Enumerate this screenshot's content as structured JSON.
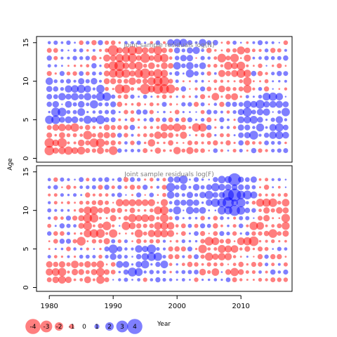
{
  "chart_data": [
    {
      "type": "scatter",
      "title": "Joint sample residuals log(N)",
      "xlabel": "Year",
      "ylabel": "Age",
      "xlim": [
        1978,
        2018
      ],
      "ylim": [
        -0.5,
        15.8
      ],
      "xticks": [
        1980,
        1990,
        2000,
        2010
      ],
      "yticks": [
        0,
        5,
        10,
        15
      ],
      "years": [
        1980,
        2017
      ],
      "ages": [
        1,
        15
      ],
      "encoding": "bubble area proportional to |residual|; red = negative, blue = positive",
      "region_pattern": [
        {
          "years": [
            1989,
            1999
          ],
          "ages": [
            9,
            14
          ],
          "sign": "negative",
          "strength": 0.85
        },
        {
          "years": [
            1980,
            1990
          ],
          "ages": [
            1,
            4
          ],
          "sign": "negative",
          "strength": 0.7
        },
        {
          "years": [
            1995,
            2004
          ],
          "ages": [
            1,
            4
          ],
          "sign": "negative",
          "strength": 0.55
        },
        {
          "years": [
            2005,
            2011
          ],
          "ages": [
            8,
            14
          ],
          "sign": "negative",
          "strength": 0.6
        },
        {
          "years": [
            1980,
            1990
          ],
          "ages": [
            5,
            10
          ],
          "sign": "positive",
          "strength": 0.6
        },
        {
          "years": [
            1999,
            2006
          ],
          "ages": [
            11,
            15
          ],
          "sign": "positive",
          "strength": 0.6
        },
        {
          "years": [
            2010,
            2017
          ],
          "ages": [
            3,
            8
          ],
          "sign": "positive",
          "strength": 0.6
        }
      ]
    },
    {
      "type": "scatter",
      "title": "Joint sample residuals log(F)",
      "xlabel": "Year",
      "ylabel": "Age",
      "xlim": [
        1978,
        2018
      ],
      "ylim": [
        -0.5,
        15.8
      ],
      "xticks": [
        1980,
        1990,
        2000,
        2010
      ],
      "yticks": [
        0,
        5,
        10,
        15
      ],
      "years": [
        1980,
        2017
      ],
      "ages": [
        1,
        14
      ],
      "encoding": "bubble area proportional to |residual|; red = negative, blue = positive",
      "region_pattern": [
        {
          "years": [
            1985,
            1999
          ],
          "ages": [
            6,
            11
          ],
          "sign": "negative",
          "strength": 0.6
        },
        {
          "years": [
            1980,
            1990
          ],
          "ages": [
            1,
            3
          ],
          "sign": "negative",
          "strength": 0.6
        },
        {
          "years": [
            2004,
            2012
          ],
          "ages": [
            2,
            6
          ],
          "sign": "negative",
          "strength": 0.55
        },
        {
          "years": [
            2012,
            2017
          ],
          "ages": [
            6,
            11
          ],
          "sign": "negative",
          "strength": 0.55
        },
        {
          "years": [
            1990,
            1998
          ],
          "ages": [
            2,
            6
          ],
          "sign": "positive",
          "strength": 0.6
        },
        {
          "years": [
            1999,
            2010
          ],
          "ages": [
            10,
            14
          ],
          "sign": "positive",
          "strength": 0.6
        },
        {
          "years": [
            2007,
            2012
          ],
          "ages": [
            10,
            14
          ],
          "sign": "positive",
          "strength": 0.65
        }
      ]
    }
  ],
  "legend": {
    "values": [
      "-4",
      "-3",
      "-2",
      "-1",
      "0",
      "1",
      "2",
      "3",
      "4"
    ],
    "title": "Year"
  },
  "colors": {
    "negative": "#ff0000",
    "positive": "#0000ff",
    "bubble_opacity": 0.5
  }
}
